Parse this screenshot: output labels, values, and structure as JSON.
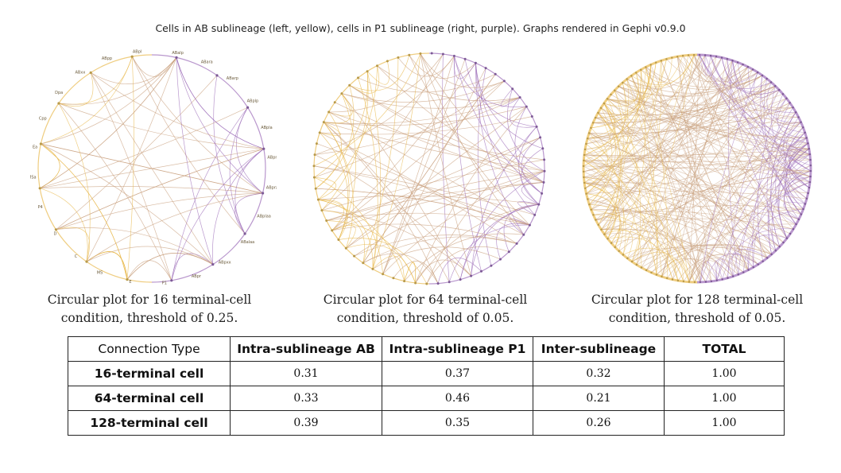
{
  "header": {
    "title": "Cells in AB sublineage (left, yellow), cells in P1 sublineage (right, purple). Graphs rendered in Gephi v0.9.0"
  },
  "colors": {
    "ab": "#e8b84a",
    "p1": "#9b6bb8",
    "inter": "#c9a07e",
    "label": "#6a5a3a"
  },
  "plots": [
    {
      "node_count": 16,
      "caption": "Circular plot for 16 terminal-cell condition, threshold of 0.25.",
      "node_labels": [
        "ABpl",
        "ABalp",
        "ABara",
        "ABarp",
        "ABplp",
        "ABpla",
        "ABprp",
        "ABpra",
        "ABplaa",
        "ABalaa",
        "ABpxx",
        "ABpr",
        "P1",
        "E",
        "MS",
        "C",
        "D",
        "P4",
        "MSa",
        "Ea",
        "Cpp",
        "Dpa",
        "ABxx",
        "ABpp"
      ]
    },
    {
      "node_count": 64,
      "caption": "Circular plot for 64 terminal-cell condition, threshold of 0.05."
    },
    {
      "node_count": 128,
      "caption": "Circular plot for 128 terminal-cell condition, threshold of 0.05."
    }
  ],
  "table": {
    "headers": [
      "Connection Type",
      "Intra-sublineage AB",
      "Intra-sublineage P1",
      "Inter-sublineage",
      "TOTAL"
    ],
    "rows": [
      {
        "label": "16-terminal cell",
        "cells": [
          "0.31",
          "0.37",
          "0.32",
          "1.00"
        ]
      },
      {
        "label": "64-terminal cell",
        "cells": [
          "0.33",
          "0.46",
          "0.21",
          "1.00"
        ]
      },
      {
        "label": "128-terminal cell",
        "cells": [
          "0.39",
          "0.35",
          "0.26",
          "1.00"
        ]
      }
    ]
  }
}
